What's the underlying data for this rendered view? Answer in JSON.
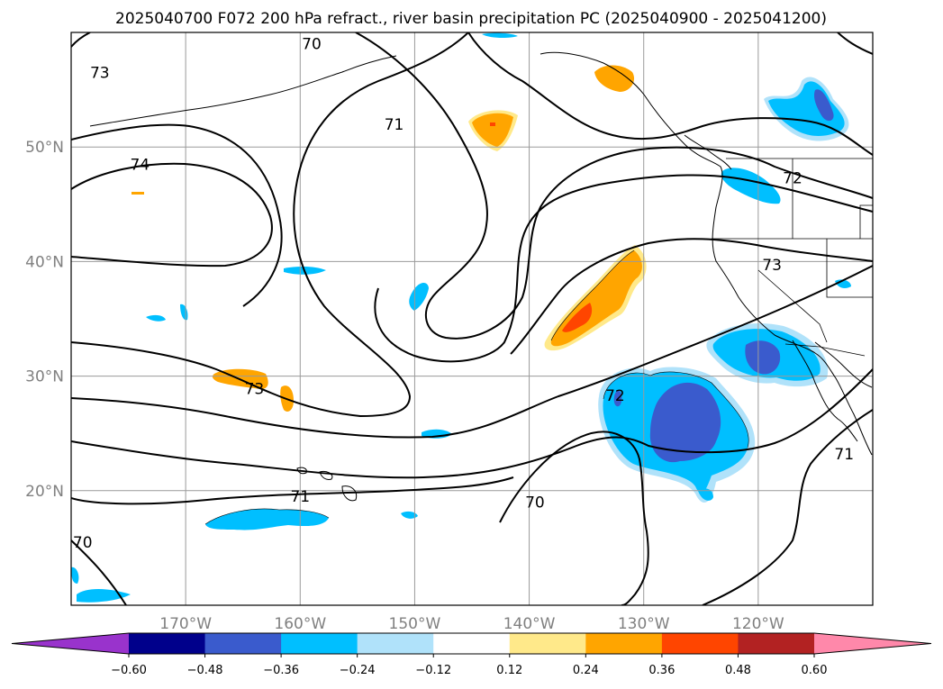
{
  "chart_data": {
    "type": "contour_map",
    "title": "2025040700 F072 200 hPa refract., river basin precipitation PC (2025040900 - 2025041200)",
    "lon_range": [
      -180,
      -110
    ],
    "lat_range": [
      10,
      60
    ],
    "grid": true,
    "x_ticks": [
      {
        "value": -170,
        "label": "170°W"
      },
      {
        "value": -160,
        "label": "160°W"
      },
      {
        "value": -150,
        "label": "150°W"
      },
      {
        "value": -140,
        "label": "140°W"
      },
      {
        "value": -130,
        "label": "130°W"
      },
      {
        "value": -120,
        "label": "120°W"
      }
    ],
    "y_ticks": [
      {
        "value": 20,
        "label": "20°N"
      },
      {
        "value": 30,
        "label": "30°N"
      },
      {
        "value": 40,
        "label": "40°N"
      },
      {
        "value": 50,
        "label": "50°N"
      }
    ],
    "colorbar": {
      "levels": [
        -0.6,
        -0.48,
        -0.36,
        -0.24,
        -0.12,
        0.12,
        0.24,
        0.36,
        0.48,
        0.6
      ],
      "labels": [
        "−0.60",
        "−0.48",
        "−0.36",
        "−0.24",
        "−0.12",
        "0.12",
        "0.24",
        "0.36",
        "0.48",
        "0.60"
      ],
      "colors": [
        "#9933cc",
        "#00008b",
        "#3a5bcd",
        "#00bfff",
        "#b0e2fa",
        "#ffffff",
        "#ffe98a",
        "#ffa500",
        "#ff4500",
        "#b22222",
        "#ff88aa"
      ],
      "extend": "both"
    },
    "contour_labels": [
      {
        "text": "70",
        "lon": -179,
        "lat": 15.5
      },
      {
        "text": "73",
        "lon": -177.5,
        "lat": 56.5
      },
      {
        "text": "70",
        "lon": -159,
        "lat": 59
      },
      {
        "text": "71",
        "lon": -160,
        "lat": 19.5
      },
      {
        "text": "71",
        "lon": -151.8,
        "lat": 52
      },
      {
        "text": "74",
        "lon": -174,
        "lat": 48.5
      },
      {
        "text": "73",
        "lon": -164,
        "lat": 28.9
      },
      {
        "text": "72",
        "lon": -132.5,
        "lat": 28.3
      },
      {
        "text": "70",
        "lon": -139.5,
        "lat": 19
      },
      {
        "text": "72",
        "lon": -117,
        "lat": 47.3
      },
      {
        "text": "73",
        "lon": -118.8,
        "lat": 39.7
      },
      {
        "text": "71",
        "lon": -112.5,
        "lat": 23.2
      }
    ],
    "shaded_regions": [
      {
        "level": "-0.36",
        "color": "#00bfff",
        "lon": [
          -136,
          -122
        ],
        "lat": [
          20,
          29.5
        ]
      },
      {
        "level": "-0.48",
        "color": "#3a5bcd",
        "lon": [
          -131,
          -124
        ],
        "lat": [
          22,
          28
        ]
      },
      {
        "level": "-0.36",
        "color": "#00bfff",
        "lon": [
          -124,
          -115
        ],
        "lat": [
          29,
          35
        ]
      },
      {
        "level": "0.36",
        "color": "#ff4500",
        "lon": [
          -137,
          -135
        ],
        "lat": [
          34,
          37
        ]
      },
      {
        "level": "0.24",
        "color": "#ffa500",
        "lon": [
          -138,
          -131
        ],
        "lat": [
          33,
          40.5
        ]
      },
      {
        "level": "0.24",
        "color": "#ffa500",
        "lon": [
          -145,
          -141
        ],
        "lat": [
          49,
          53
        ]
      },
      {
        "level": "-0.36",
        "color": "#00bfff",
        "lon": [
          -170,
          -161
        ],
        "lat": [
          16.5,
          18.5
        ]
      }
    ]
  }
}
